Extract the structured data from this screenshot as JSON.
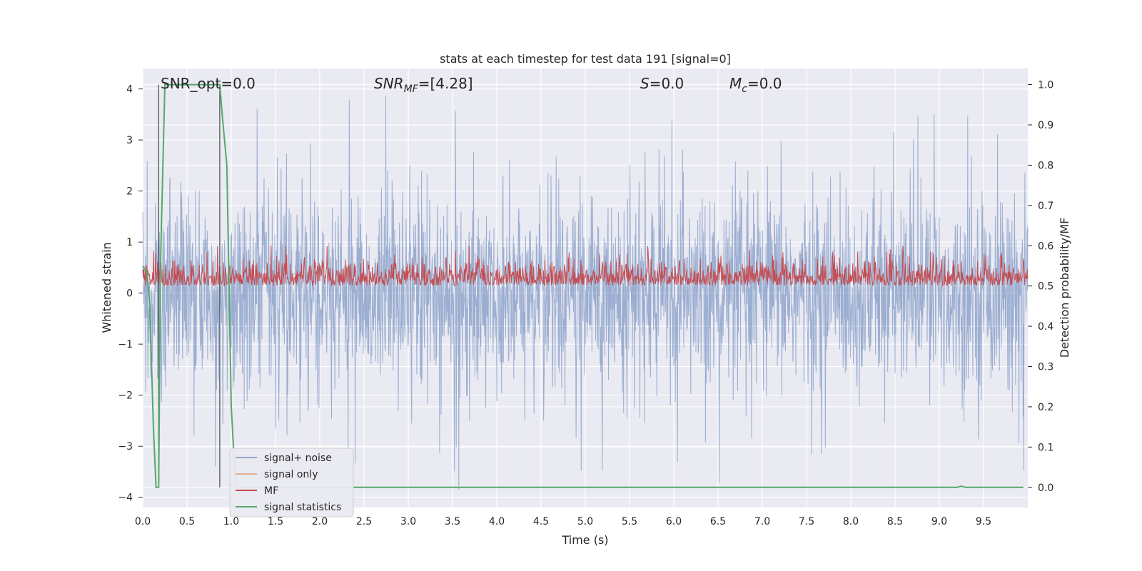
{
  "chart_data": {
    "type": "line",
    "title": "stats at each timestep for test data 191 [signal=0]",
    "xlabel": "Time (s)",
    "ylabel": "Whitened strain",
    "y2label": "Detection probability/MF",
    "xlim": [
      0.0,
      10.0
    ],
    "ylim": [
      -4.2,
      4.4
    ],
    "y2lim": [
      -0.05,
      1.04
    ],
    "x_ticks": [
      "0.0",
      "0.5",
      "1.0",
      "1.5",
      "2.0",
      "2.5",
      "3.0",
      "3.5",
      "4.0",
      "4.5",
      "5.0",
      "5.5",
      "6.0",
      "6.5",
      "7.0",
      "7.5",
      "8.0",
      "8.5",
      "9.0",
      "9.5"
    ],
    "y_ticks": [
      "4",
      "3",
      "2",
      "1",
      "0",
      "−1",
      "−2",
      "−3",
      "−4"
    ],
    "y2_ticks": [
      "1.0",
      "0.9",
      "0.8",
      "0.7",
      "0.6",
      "0.5",
      "0.4",
      "0.3",
      "0.2",
      "0.1",
      "0.0"
    ],
    "grid": true,
    "legend_position": "lower-left",
    "annotations": [
      {
        "key": "snr_opt",
        "label": "SNR_opt=0.0"
      },
      {
        "key": "snr_mf",
        "label": "SNR_MF=[4.28]"
      },
      {
        "key": "s",
        "label": "S=0.0"
      },
      {
        "key": "mc",
        "label": "M_c=0.0"
      }
    ],
    "vertical_lines_x": [
      0.18,
      0.87
    ],
    "series": [
      {
        "name": "signal+ noise",
        "color": "#4c72b0",
        "axis": "left",
        "description": "whitened noise, roughly ±2 with spikes to ±4"
      },
      {
        "name": "signal only",
        "color": "#dd8452",
        "axis": "left",
        "values_note": "zero"
      },
      {
        "name": "MF",
        "color": "#c44e52",
        "axis": "right",
        "range": [
          0.5,
          0.6
        ]
      },
      {
        "name": "signal statistics",
        "color": "#55a868",
        "axis": "right",
        "x": [
          0.0,
          0.05,
          0.08,
          0.1,
          0.12,
          0.15,
          0.18,
          0.2,
          0.25,
          0.3,
          0.5,
          0.7,
          0.87,
          0.9,
          0.95,
          1.0,
          1.05,
          1.5,
          2.0,
          3.0,
          4.0,
          5.0,
          6.0,
          7.0,
          8.0,
          9.0,
          9.2,
          9.25,
          9.3,
          9.5,
          9.95
        ],
        "y": [
          0.55,
          0.53,
          0.45,
          0.3,
          0.15,
          0.0,
          0.0,
          0.55,
          1.0,
          1.0,
          1.0,
          1.0,
          1.0,
          0.92,
          0.8,
          0.2,
          0.0,
          0.0,
          0.0,
          0.0,
          0.0,
          0.0,
          0.0,
          0.0,
          0.0,
          0.0,
          0.0,
          0.003,
          0.0,
          0.0,
          0.0
        ]
      }
    ]
  }
}
